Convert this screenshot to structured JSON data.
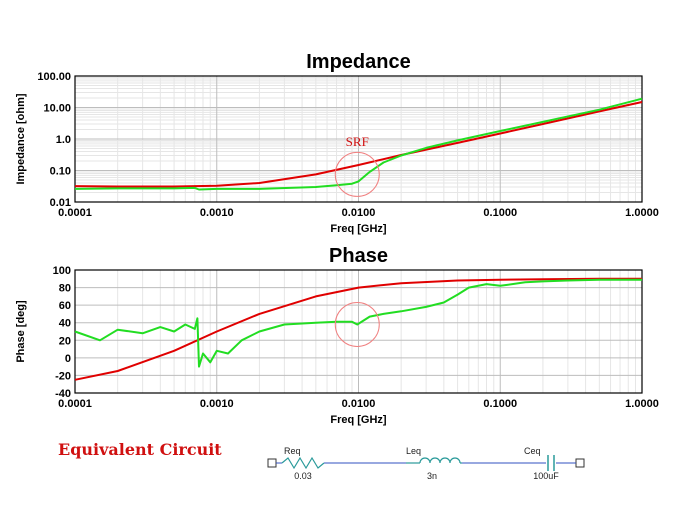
{
  "chart_data": [
    {
      "type": "line",
      "title": "Impedance",
      "xlabel": "Freq [GHz]",
      "ylabel": "Impedance [ohm]",
      "xscale": "log",
      "yscale": "log",
      "xlim": [
        0.0001,
        1.0
      ],
      "ylim": [
        0.01,
        100
      ],
      "x_ticks": [
        "0.0001",
        "0.0010",
        "0.0100",
        "0.1000",
        "1.0000"
      ],
      "y_ticks": [
        "0.01",
        "0.10",
        "1.0",
        "10.00",
        "100.00"
      ],
      "grid": true,
      "annotation": "SRF",
      "series": [
        {
          "color": "#e00000",
          "x": [
            0.0001,
            0.0002,
            0.0005,
            0.001,
            0.002,
            0.005,
            0.01,
            0.02,
            0.05,
            0.1,
            0.2,
            0.5,
            1.0
          ],
          "y": [
            0.032,
            0.031,
            0.031,
            0.033,
            0.04,
            0.075,
            0.15,
            0.31,
            0.75,
            1.5,
            3.0,
            7.5,
            15.0
          ]
        },
        {
          "color": "#22dd22",
          "x": [
            0.0001,
            0.0002,
            0.0005,
            0.0007,
            0.00075,
            0.001,
            0.002,
            0.005,
            0.007,
            0.009,
            0.01,
            0.012,
            0.015,
            0.02,
            0.03,
            0.05,
            0.1,
            0.2,
            0.5,
            1.0
          ],
          "y": [
            0.026,
            0.027,
            0.027,
            0.028,
            0.025,
            0.026,
            0.026,
            0.03,
            0.034,
            0.038,
            0.045,
            0.09,
            0.18,
            0.3,
            0.52,
            0.9,
            1.8,
            3.5,
            8.5,
            19.0
          ]
        }
      ]
    },
    {
      "type": "line",
      "title": "Phase",
      "xlabel": "Freq [GHz]",
      "ylabel": "Phase [deg]",
      "xscale": "log",
      "xlim": [
        0.0001,
        1.0
      ],
      "ylim": [
        -40,
        100
      ],
      "x_ticks": [
        "0.0001",
        "0.0010",
        "0.0100",
        "0.1000",
        "1.0000"
      ],
      "y_ticks": [
        "-40",
        "-20",
        "0",
        "20",
        "40",
        "60",
        "80",
        "100"
      ],
      "grid": true,
      "series": [
        {
          "color": "#e00000",
          "x": [
            0.0001,
            0.0002,
            0.0005,
            0.001,
            0.002,
            0.005,
            0.01,
            0.02,
            0.05,
            0.1,
            0.2,
            0.5,
            1.0
          ],
          "y": [
            -25,
            -15,
            8,
            30,
            50,
            70,
            80,
            85,
            88,
            89,
            89.5,
            90,
            90
          ]
        },
        {
          "color": "#22dd22",
          "x": [
            0.0001,
            0.00015,
            0.0002,
            0.0003,
            0.0004,
            0.0005,
            0.0006,
            0.0007,
            0.00073,
            0.00075,
            0.0008,
            0.0009,
            0.001,
            0.0012,
            0.0015,
            0.002,
            0.003,
            0.005,
            0.007,
            0.009,
            0.0098,
            0.012,
            0.015,
            0.02,
            0.03,
            0.04,
            0.05,
            0.06,
            0.08,
            0.1,
            0.15,
            0.2,
            0.3,
            0.5,
            1.0
          ],
          "y": [
            30,
            20,
            32,
            28,
            35,
            30,
            38,
            33,
            45,
            -10,
            5,
            -5,
            8,
            5,
            20,
            30,
            38,
            40,
            41,
            41,
            38,
            47,
            50,
            53,
            58,
            63,
            72,
            80,
            84,
            82,
            86,
            87,
            88,
            89,
            89
          ]
        }
      ]
    }
  ],
  "circuit": {
    "title": "Equivalent Circuit",
    "components": [
      {
        "name": "Req",
        "value": "0.03"
      },
      {
        "name": "Leq",
        "value": "3n"
      },
      {
        "name": "Ceq",
        "value": "100uF"
      }
    ]
  }
}
